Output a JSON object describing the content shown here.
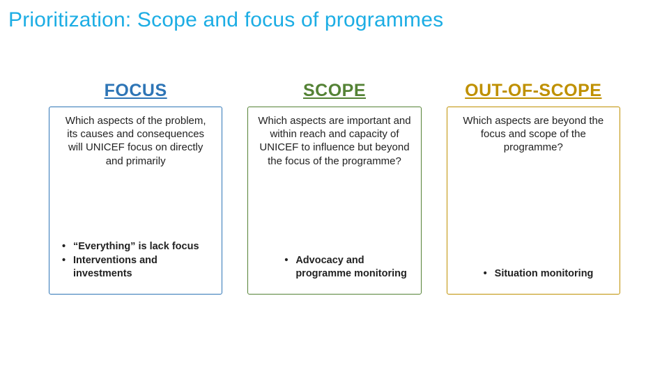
{
  "title": "Prioritization: Scope and focus of programmes",
  "title_color": "#1cade4",
  "columns": [
    {
      "heading": "FOCUS",
      "heading_color": "#2e75b6",
      "border_color": "#2e75b6",
      "description": "Which aspects of the problem, its causes and consequences will UNICEF focus on directly and primarily",
      "bullets": [
        "“Everything” is lack focus",
        "Interventions and investments"
      ],
      "bullets_align": "left"
    },
    {
      "heading": "SCOPE",
      "heading_color": "#548235",
      "border_color": "#548235",
      "description": "Which aspects are important and within reach and capacity of UNICEF to influence but beyond the focus of the programme?",
      "bullets": [
        "Advocacy and programme monitoring"
      ],
      "bullets_align": "center"
    },
    {
      "heading": "OUT-OF-SCOPE",
      "heading_color": "#bf9000",
      "border_color": "#bf9000",
      "description": "Which aspects are beyond the focus and scope of the programme?",
      "bullets": [
        "Situation monitoring"
      ],
      "bullets_align": "center"
    }
  ]
}
